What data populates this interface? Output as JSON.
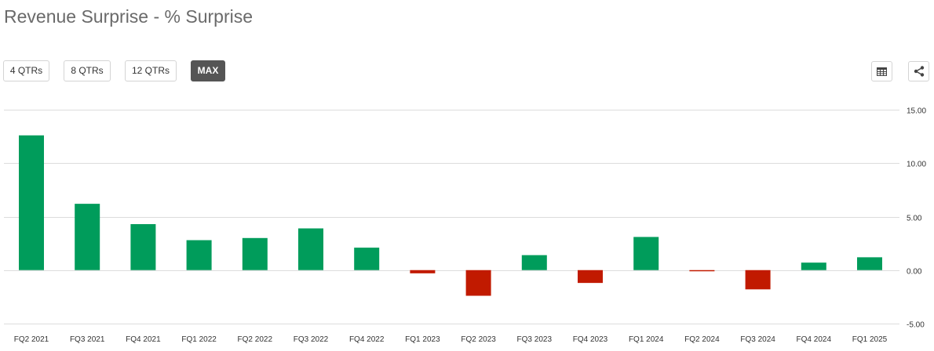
{
  "header": {
    "title": "Revenue Surprise - % Surprise"
  },
  "range_buttons": [
    {
      "label": "4 QTRs",
      "active": false
    },
    {
      "label": "8 QTRs",
      "active": false
    },
    {
      "label": "12 QTRs",
      "active": false
    },
    {
      "label": "MAX",
      "active": true
    }
  ],
  "colors": {
    "positive": "#009c5b",
    "negative": "#c11a00",
    "grid": "#dcdcdc"
  },
  "chart_data": {
    "type": "bar",
    "title": "Revenue Surprise - % Surprise",
    "categories": [
      "FQ2 2021",
      "FQ3 2021",
      "FQ4 2021",
      "FQ1 2022",
      "FQ2 2022",
      "FQ3 2022",
      "FQ4 2022",
      "FQ1 2023",
      "FQ2 2023",
      "FQ3 2023",
      "FQ4 2023",
      "FQ1 2024",
      "FQ2 2024",
      "FQ3 2024",
      "FQ4 2024",
      "FQ1 2025"
    ],
    "values": [
      12.6,
      6.2,
      4.3,
      2.8,
      3.0,
      3.9,
      2.1,
      -0.3,
      -2.4,
      1.4,
      -1.2,
      3.1,
      -0.1,
      -1.8,
      0.7,
      1.2
    ],
    "xlabel": "",
    "ylabel": "",
    "ylim": [
      -5,
      15
    ],
    "yticks": [
      "15.00",
      "10.00",
      "5.00",
      "0.00",
      "-5.00"
    ],
    "ytick_values": [
      15,
      10,
      5,
      0,
      -5
    ],
    "y_axis_side": "right",
    "grid": true,
    "legend": "none"
  }
}
